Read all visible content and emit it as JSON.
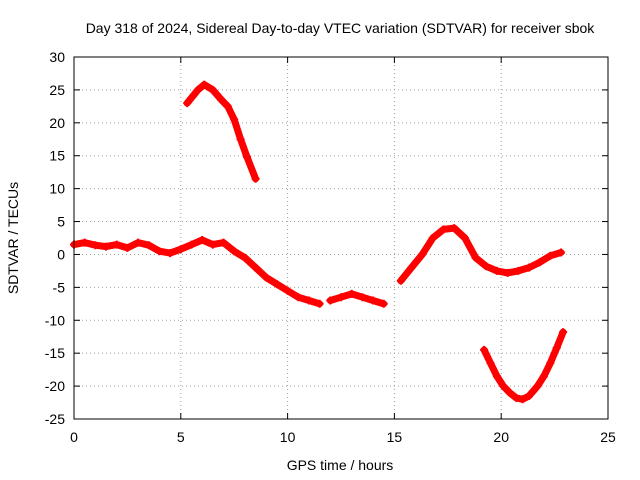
{
  "chart_data": {
    "type": "line",
    "title": "Day 318 of 2024, Sidereal Day-to-day VTEC variation (SDTVAR) for receiver sbok",
    "xlabel": "GPS time / hours",
    "ylabel": "SDTVAR / TECUs",
    "xlim": [
      0,
      25
    ],
    "ylim": [
      -25,
      30
    ],
    "xticks": [
      0,
      5,
      10,
      15,
      20,
      25
    ],
    "yticks": [
      -25,
      -20,
      -15,
      -10,
      -5,
      0,
      5,
      10,
      15,
      20,
      25,
      30
    ],
    "grid": true,
    "color": "#ff0000",
    "series": [
      {
        "name": "segment-main-early",
        "x": [
          0.0,
          0.5,
          1.0,
          1.5,
          2.0,
          2.5,
          3.0,
          3.5,
          4.0,
          4.5,
          5.0,
          5.5,
          6.0,
          6.5,
          7.0,
          7.5,
          8.0,
          8.5,
          9.0,
          9.5,
          10.0,
          10.5,
          11.0,
          11.5
        ],
        "y": [
          1.5,
          1.8,
          1.4,
          1.2,
          1.5,
          1.0,
          1.8,
          1.4,
          0.5,
          0.2,
          0.8,
          1.5,
          2.2,
          1.5,
          1.8,
          0.5,
          -0.5,
          -2.0,
          -3.5,
          -4.5,
          -5.5,
          -6.5,
          -7.0,
          -7.5
        ]
      },
      {
        "name": "segment-main-mid",
        "x": [
          12.0,
          12.5,
          13.0,
          13.5,
          14.0,
          14.5
        ],
        "y": [
          -7.0,
          -6.5,
          -6.0,
          -6.5,
          -7.0,
          -7.5
        ]
      },
      {
        "name": "segment-main-late",
        "x": [
          15.3,
          15.8,
          16.3,
          16.8,
          17.3,
          17.8,
          18.3,
          18.8,
          19.3,
          19.8,
          20.3,
          20.8,
          21.3,
          21.8,
          22.3,
          22.8
        ],
        "y": [
          -4.0,
          -2.0,
          0.0,
          2.5,
          3.8,
          4.0,
          2.5,
          -0.5,
          -1.8,
          -2.5,
          -2.8,
          -2.5,
          -2.0,
          -1.2,
          -0.2,
          0.3
        ]
      },
      {
        "name": "segment-upper",
        "x": [
          5.3,
          5.8,
          6.1,
          6.5,
          6.9,
          7.2,
          7.5,
          7.8,
          8.1,
          8.5
        ],
        "y": [
          23.0,
          25.0,
          25.8,
          25.0,
          23.5,
          22.5,
          20.5,
          17.5,
          14.8,
          11.5
        ]
      },
      {
        "name": "segment-lower",
        "x": [
          19.2,
          19.5,
          19.8,
          20.1,
          20.4,
          20.7,
          21.0,
          21.3,
          21.7,
          22.0,
          22.3,
          22.6,
          22.9
        ],
        "y": [
          -14.5,
          -16.5,
          -18.5,
          -20.0,
          -21.0,
          -21.8,
          -22.0,
          -21.5,
          -20.0,
          -18.5,
          -16.5,
          -14.2,
          -11.8
        ]
      }
    ]
  }
}
